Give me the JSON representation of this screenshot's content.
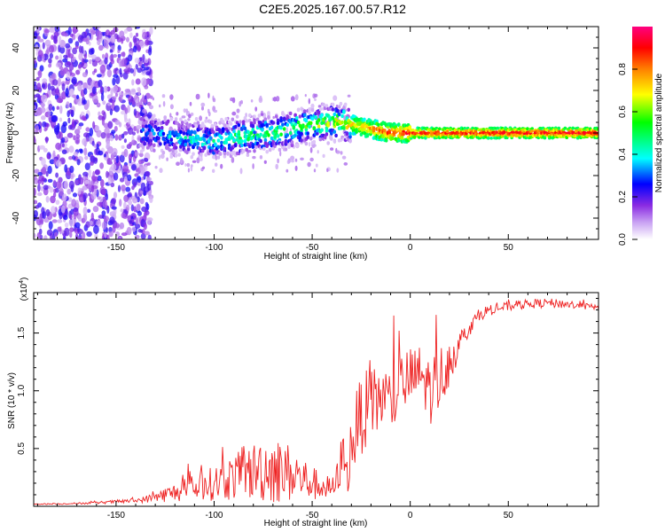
{
  "title": "C2E5.2025.167.00.57.R12",
  "chart_data": [
    {
      "type": "heatmap",
      "title": "C2E5.2025.167.00.57.R12",
      "xlabel": "Height of straight line (km)",
      "ylabel": "Frequency (Hz)",
      "xlim": [
        -192,
        96
      ],
      "ylim": [
        -50,
        50
      ],
      "xticks": [
        -150,
        -100,
        -50,
        0,
        50
      ],
      "yticks": [
        -40,
        -20,
        0,
        20,
        40
      ],
      "xtick_labels": [
        "-150",
        "-100",
        "-50",
        "0",
        "50"
      ],
      "ytick_labels": [
        "-40",
        "-20",
        "0",
        "20",
        "40"
      ],
      "colorbar": {
        "label": "Normalized spectral amplitude",
        "range": [
          0.0,
          1.0
        ],
        "ticks": [
          0.0,
          0.2,
          0.4,
          0.6,
          0.8
        ],
        "tick_labels": [
          "0.0",
          "0.2",
          "0.4",
          "0.6",
          "0.8"
        ],
        "colormap": [
          "#ffffff",
          "#c9a2f3",
          "#8a2be2",
          "#0000ff",
          "#00ffff",
          "#00ff00",
          "#ffff00",
          "#ff8000",
          "#ff0000",
          "#ff0080"
        ]
      },
      "ridge": {
        "x": [
          -135,
          -120,
          -110,
          -100,
          -90,
          -80,
          -70,
          -60,
          -50,
          -45,
          -40,
          -35,
          -30,
          -25,
          -20,
          -15,
          -10,
          -5,
          0,
          10,
          20,
          30,
          40,
          50,
          60,
          70,
          80,
          90,
          96
        ],
        "frequency": [
          0,
          -2,
          -3,
          -4,
          -2,
          -1,
          0,
          2,
          4,
          4,
          5,
          5,
          4,
          3,
          2,
          1,
          0,
          0,
          0,
          0,
          0,
          0,
          0,
          0,
          0,
          0,
          0,
          0,
          0
        ],
        "amplitude": [
          0.35,
          0.4,
          0.45,
          0.45,
          0.5,
          0.5,
          0.55,
          0.55,
          0.6,
          0.65,
          0.7,
          0.7,
          0.72,
          0.75,
          0.8,
          0.85,
          0.88,
          0.9,
          0.92,
          0.92,
          0.93,
          0.93,
          0.94,
          0.94,
          0.95,
          0.95,
          0.95,
          0.95,
          0.95
        ]
      },
      "noise_region": {
        "x_range": [
          -192,
          -140
        ],
        "amplitude": [
          0.05,
          0.25
        ]
      }
    },
    {
      "type": "line",
      "xlabel": "Height of straight line (km)",
      "ylabel": "SNR (10 * v/v)",
      "y_exponent_label": "(x10",
      "y_exponent": "4",
      "y_exponent_close": ")",
      "xlim": [
        -192,
        96
      ],
      "ylim": [
        0.0,
        1.85
      ],
      "xticks": [
        -150,
        -100,
        -50,
        0,
        50
      ],
      "yticks": [
        0.5,
        1.0,
        1.5
      ],
      "xtick_labels": [
        "-150",
        "-100",
        "-50",
        "0",
        "50"
      ],
      "ytick_labels": [
        "0.5",
        "1.0",
        "1.5"
      ],
      "color": "#ee2222",
      "series": [
        {
          "name": "SNR",
          "x": [
            -192,
            -180,
            -160,
            -140,
            -135,
            -130,
            -120,
            -110,
            -100,
            -90,
            -80,
            -75,
            -70,
            -60,
            -55,
            -50,
            -45,
            -40,
            -38,
            -36,
            -34,
            -32,
            -30,
            -25,
            -20,
            -15,
            -10,
            -5,
            0,
            5,
            10,
            15,
            20,
            25,
            30,
            35,
            40,
            50,
            60,
            70,
            80,
            90,
            96
          ],
          "base": [
            0.02,
            0.02,
            0.03,
            0.05,
            0.06,
            0.08,
            0.12,
            0.16,
            0.2,
            0.25,
            0.3,
            0.33,
            0.32,
            0.28,
            0.24,
            0.2,
            0.17,
            0.15,
            0.18,
            0.35,
            0.45,
            0.25,
            0.55,
            0.8,
            0.85,
            0.95,
            0.9,
            1.05,
            1.1,
            1.15,
            1.0,
            1.1,
            1.25,
            1.4,
            1.55,
            1.65,
            1.7,
            1.73,
            1.75,
            1.76,
            1.75,
            1.73,
            1.72
          ],
          "noise": [
            0.005,
            0.005,
            0.01,
            0.02,
            0.03,
            0.05,
            0.08,
            0.12,
            0.15,
            0.2,
            0.25,
            0.3,
            0.3,
            0.25,
            0.2,
            0.15,
            0.12,
            0.1,
            0.12,
            0.2,
            0.2,
            0.15,
            0.3,
            0.35,
            0.35,
            0.3,
            0.3,
            0.28,
            0.28,
            0.25,
            0.3,
            0.3,
            0.2,
            0.12,
            0.08,
            0.05,
            0.05,
            0.04,
            0.04,
            0.04,
            0.04,
            0.03,
            0.02
          ]
        }
      ]
    }
  ]
}
